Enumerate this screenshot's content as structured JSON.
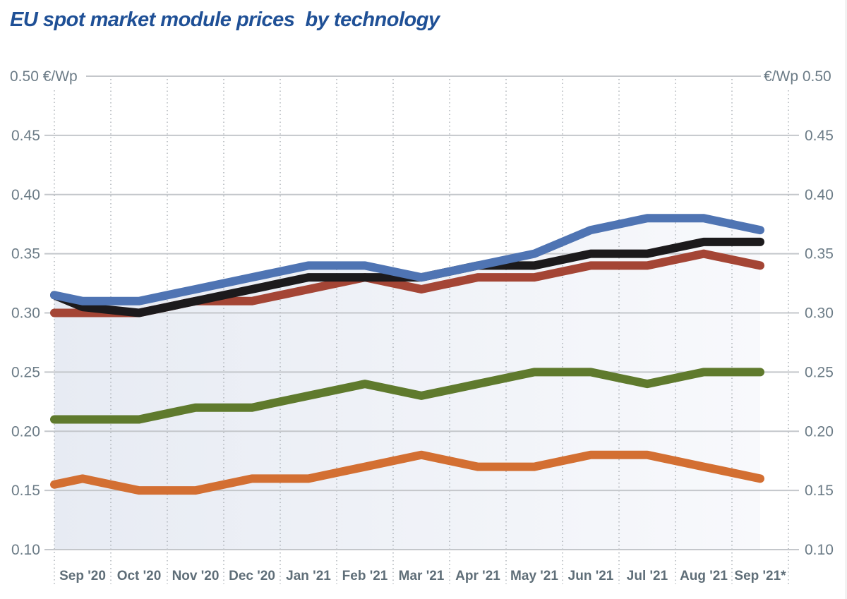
{
  "chart_data": {
    "type": "line",
    "title": "EU spot market module prices  by technology",
    "ylabel": "€/Wp",
    "ylabel_left": "0.50 €/Wp",
    "ylabel_right": "€/Wp 0.50",
    "ylim": [
      0.1,
      0.5
    ],
    "yticks": [
      0.5,
      0.45,
      0.4,
      0.35,
      0.3,
      0.25,
      0.2,
      0.15,
      0.1
    ],
    "ytick_labels": [
      "0.50",
      "0.45",
      "0.40",
      "0.35",
      "0.30",
      "0.25",
      "0.20",
      "0.15",
      "0.10"
    ],
    "categories": [
      "Sep '20",
      "Oct '20",
      "Nov '20",
      "Dec '20",
      "Jan '21",
      "Feb '21",
      "Mar '21",
      "Apr '21",
      "May '21",
      "Jun '21",
      "Jul '21",
      "Aug '21",
      "Sep '21*"
    ],
    "x_note": "First value of each series is the start of the period (left edge); subsequent values are month midpoints.",
    "grid": true,
    "legend": "none",
    "series": [
      {
        "name": "blue",
        "color": "#4f74b3",
        "start": 0.315,
        "values": [
          0.31,
          0.31,
          0.32,
          0.33,
          0.34,
          0.34,
          0.33,
          0.34,
          0.35,
          0.37,
          0.38,
          0.38,
          0.37
        ]
      },
      {
        "name": "black",
        "color": "#1c1a1c",
        "start": 0.315,
        "values": [
          0.305,
          0.3,
          0.31,
          0.32,
          0.33,
          0.33,
          0.33,
          0.34,
          0.34,
          0.35,
          0.35,
          0.36,
          0.36
        ]
      },
      {
        "name": "red",
        "color": "#a44535",
        "start": 0.3,
        "values": [
          0.3,
          0.3,
          0.31,
          0.31,
          0.32,
          0.33,
          0.32,
          0.33,
          0.33,
          0.34,
          0.34,
          0.35,
          0.34
        ]
      },
      {
        "name": "green",
        "color": "#5f7a2d",
        "start": 0.21,
        "values": [
          0.21,
          0.21,
          0.22,
          0.22,
          0.23,
          0.24,
          0.23,
          0.24,
          0.25,
          0.25,
          0.24,
          0.25,
          0.25
        ]
      },
      {
        "name": "orange",
        "color": "#d36f32",
        "start": 0.155,
        "values": [
          0.16,
          0.15,
          0.15,
          0.16,
          0.16,
          0.17,
          0.18,
          0.17,
          0.17,
          0.18,
          0.18,
          0.17,
          0.16
        ]
      }
    ]
  }
}
